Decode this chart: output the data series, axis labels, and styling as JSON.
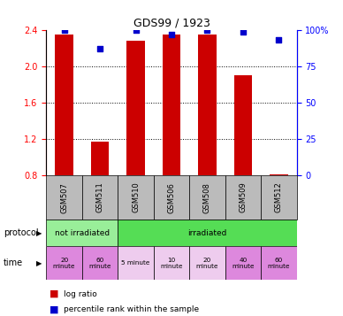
{
  "title": "GDS99 / 1923",
  "samples": [
    "GSM507",
    "GSM511",
    "GSM510",
    "GSM506",
    "GSM508",
    "GSM509",
    "GSM512"
  ],
  "log_ratio": [
    2.35,
    1.17,
    2.28,
    2.35,
    2.35,
    1.9,
    0.81
  ],
  "percentile_rank": [
    100,
    87,
    100,
    97,
    100,
    99,
    93
  ],
  "ylim_left": [
    0.8,
    2.4
  ],
  "ylim_right": [
    0,
    100
  ],
  "left_ticks": [
    0.8,
    1.2,
    1.6,
    2.0,
    2.4
  ],
  "right_ticks": [
    0,
    25,
    50,
    75,
    100
  ],
  "bar_color": "#cc0000",
  "dot_color": "#0000cc",
  "time_labels": [
    "20\nminute",
    "60\nminute",
    "5 minute",
    "10\nminute",
    "20\nminute",
    "40\nminute",
    "60\nminute"
  ],
  "time_colors_dark": [
    0,
    1,
    5,
    6
  ],
  "time_colors_light": [
    2,
    3,
    4
  ],
  "color_not_irradiated": "#99ee99",
  "color_irradiated": "#55dd55",
  "color_time_dark": "#dd88dd",
  "color_time_light": "#eeccee",
  "color_label_bg": "#bbbbbb",
  "legend_log_ratio": "log ratio",
  "legend_percentile": "percentile rank within the sample"
}
